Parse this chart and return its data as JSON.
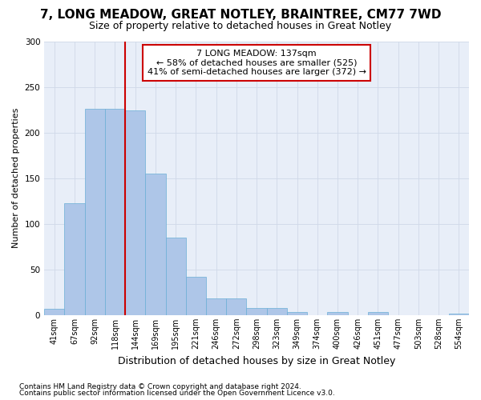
{
  "title": "7, LONG MEADOW, GREAT NOTLEY, BRAINTREE, CM77 7WD",
  "subtitle": "Size of property relative to detached houses in Great Notley",
  "xlabel": "Distribution of detached houses by size in Great Notley",
  "ylabel": "Number of detached properties",
  "bar_labels": [
    "41sqm",
    "67sqm",
    "92sqm",
    "118sqm",
    "144sqm",
    "169sqm",
    "195sqm",
    "221sqm",
    "246sqm",
    "272sqm",
    "298sqm",
    "323sqm",
    "349sqm",
    "374sqm",
    "400sqm",
    "426sqm",
    "451sqm",
    "477sqm",
    "503sqm",
    "528sqm",
    "554sqm"
  ],
  "bar_values": [
    7,
    123,
    226,
    226,
    224,
    155,
    85,
    42,
    18,
    18,
    8,
    8,
    3,
    0,
    3,
    0,
    3,
    0,
    0,
    0,
    2
  ],
  "bar_color": "#aec6e8",
  "bar_edgecolor": "#6aaed6",
  "plot_bg_color": "#e8eef8",
  "annotation_line1": "7 LONG MEADOW: 137sqm",
  "annotation_line2": "← 58% of detached houses are smaller (525)",
  "annotation_line3": "41% of semi-detached houses are larger (372) →",
  "annotation_edgecolor": "#cc0000",
  "vline_color": "#cc0000",
  "vline_x_idx": 3.5,
  "ylim": [
    0,
    300
  ],
  "yticks": [
    0,
    50,
    100,
    150,
    200,
    250,
    300
  ],
  "footer1": "Contains HM Land Registry data © Crown copyright and database right 2024.",
  "footer2": "Contains public sector information licensed under the Open Government Licence v3.0.",
  "title_fontsize": 11,
  "subtitle_fontsize": 9,
  "ylabel_fontsize": 8,
  "xlabel_fontsize": 9,
  "tick_fontsize": 7,
  "annot_fontsize": 8,
  "footer_fontsize": 6.5
}
